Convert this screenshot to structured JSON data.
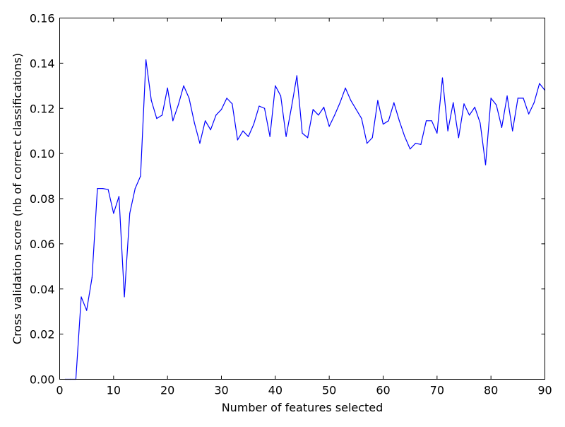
{
  "chart_data": {
    "type": "line",
    "title": "",
    "xlabel": "Number of features selected",
    "ylabel": "Cross validation score (nb of correct classifications)",
    "xlim": [
      0,
      90
    ],
    "ylim": [
      0.0,
      0.16
    ],
    "x_ticks": [
      "0",
      "10",
      "20",
      "30",
      "40",
      "50",
      "60",
      "70",
      "80",
      "90"
    ],
    "y_ticks": [
      "0.00",
      "0.02",
      "0.04",
      "0.06",
      "0.08",
      "0.10",
      "0.12",
      "0.14",
      "0.16"
    ],
    "grid": false,
    "legend": null,
    "series": [
      {
        "color": "#0000ff",
        "x": [
          1,
          2,
          3,
          4,
          5,
          6,
          7,
          8,
          9,
          10,
          11,
          12,
          13,
          14,
          15,
          16,
          17,
          18,
          19,
          20,
          21,
          22,
          23,
          24,
          25,
          26,
          27,
          28,
          29,
          30,
          31,
          32,
          33,
          34,
          35,
          36,
          37,
          38,
          39,
          40,
          41,
          42,
          43,
          44,
          45,
          46,
          47,
          48,
          49,
          50,
          51,
          52,
          53,
          54,
          55,
          56,
          57,
          58,
          59,
          60,
          61,
          62,
          63,
          64,
          65,
          66,
          67,
          68,
          69,
          70,
          71,
          72,
          73,
          74,
          75,
          76,
          77,
          78,
          79,
          80,
          81,
          82,
          83,
          84,
          85,
          86,
          87,
          88,
          89,
          90
        ],
        "values": [
          0.0,
          0.0,
          0.0,
          0.0365,
          0.0305,
          0.045,
          0.0845,
          0.0845,
          0.084,
          0.0735,
          0.081,
          0.0365,
          0.0735,
          0.0845,
          0.09,
          0.1415,
          0.1235,
          0.1155,
          0.117,
          0.129,
          0.1145,
          0.1215,
          0.13,
          0.1245,
          0.1135,
          0.1045,
          0.1145,
          0.1105,
          0.117,
          0.1195,
          0.1245,
          0.122,
          0.106,
          0.11,
          0.1075,
          0.113,
          0.121,
          0.12,
          0.1075,
          0.13,
          0.1255,
          0.1075,
          0.1205,
          0.1345,
          0.109,
          0.107,
          0.1195,
          0.117,
          0.1205,
          0.112,
          0.117,
          0.1225,
          0.129,
          0.1235,
          0.1195,
          0.1155,
          0.1045,
          0.107,
          0.1235,
          0.113,
          0.1145,
          0.1225,
          0.1145,
          0.1075,
          0.102,
          0.1045,
          0.104,
          0.1145,
          0.1145,
          0.109,
          0.1335,
          0.11,
          0.1225,
          0.107,
          0.122,
          0.117,
          0.1205,
          0.1135,
          0.095,
          0.1245,
          0.1215,
          0.1115,
          0.1255,
          0.11,
          0.1245,
          0.1245,
          0.1175,
          0.1225,
          0.131,
          0.128
        ]
      }
    ]
  }
}
